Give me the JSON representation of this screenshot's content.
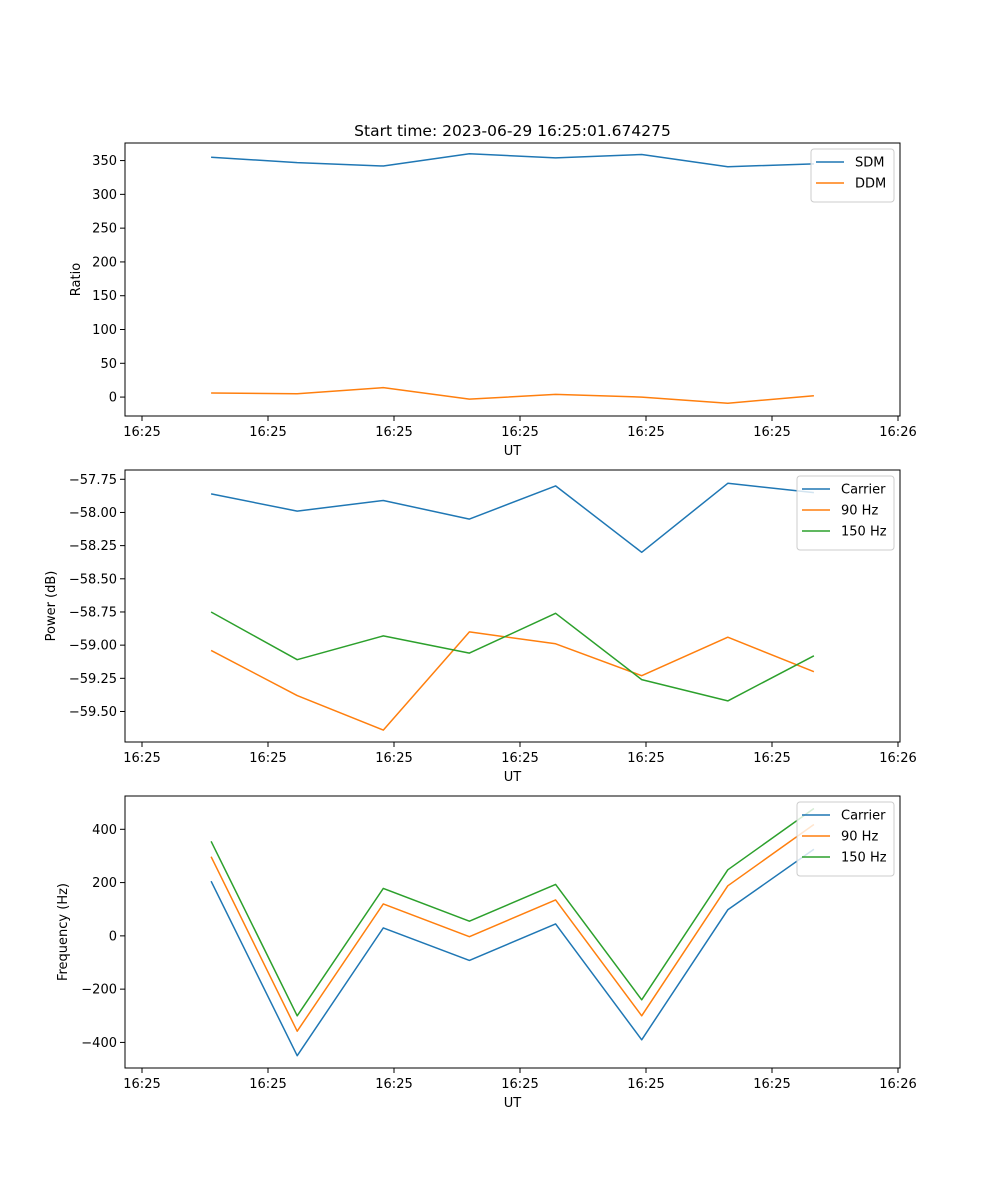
{
  "colors": {
    "blue": "#1f77b4",
    "orange": "#ff7f0e",
    "green": "#2ca02c"
  },
  "chart_data": [
    {
      "type": "line",
      "title": "Start time: 2023-06-29 16:25:01.674275",
      "xlabel": "UT",
      "ylabel": "Ratio",
      "x_ticks": [
        "16:25",
        "16:25",
        "16:25",
        "16:25",
        "16:25",
        "16:25",
        "16:26"
      ],
      "x": [
        1,
        2,
        3,
        4,
        5,
        6,
        7,
        8
      ],
      "xlim": [
        0,
        9
      ],
      "ylim": [
        -28,
        376
      ],
      "y_ticks": [
        0,
        50,
        100,
        150,
        200,
        250,
        300,
        350
      ],
      "y_tick_labels": [
        "0",
        "50",
        "100",
        "150",
        "200",
        "250",
        "300",
        "350"
      ],
      "legend": "upper right",
      "series": [
        {
          "name": "SDM",
          "color": "#1f77b4",
          "values": [
            355,
            347,
            342,
            360,
            354,
            359,
            341,
            345
          ]
        },
        {
          "name": "DDM",
          "color": "#ff7f0e",
          "values": [
            6,
            5,
            14,
            -3,
            4,
            0,
            -9,
            2
          ]
        }
      ]
    },
    {
      "type": "line",
      "xlabel": "UT",
      "ylabel": "Power (dB)",
      "x_ticks": [
        "16:25",
        "16:25",
        "16:25",
        "16:25",
        "16:25",
        "16:25",
        "16:26"
      ],
      "x": [
        1,
        2,
        3,
        4,
        5,
        6,
        7,
        8
      ],
      "xlim": [
        0,
        9
      ],
      "ylim": [
        -59.73,
        -57.68
      ],
      "y_ticks": [
        -57.75,
        -58.0,
        -58.25,
        -58.5,
        -58.75,
        -59.0,
        -59.25,
        -59.5
      ],
      "y_tick_labels": [
        "−57.75",
        "−58.00",
        "−58.25",
        "−58.50",
        "−58.75",
        "−59.00",
        "−59.25",
        "−59.50"
      ],
      "legend": "upper right",
      "series": [
        {
          "name": "Carrier",
          "color": "#1f77b4",
          "values": [
            -57.86,
            -57.99,
            -57.91,
            -58.05,
            -57.8,
            -58.3,
            -57.78,
            -57.85
          ]
        },
        {
          "name": "90 Hz",
          "color": "#ff7f0e",
          "values": [
            -59.04,
            -59.38,
            -59.64,
            -58.9,
            -58.99,
            -59.23,
            -58.94,
            -59.2
          ]
        },
        {
          "name": "150 Hz",
          "color": "#2ca02c",
          "values": [
            -58.75,
            -59.11,
            -58.93,
            -59.06,
            -58.76,
            -59.26,
            -59.42,
            -59.08
          ]
        }
      ]
    },
    {
      "type": "line",
      "xlabel": "UT",
      "ylabel": "Frequency (Hz)",
      "x_ticks": [
        "16:25",
        "16:25",
        "16:25",
        "16:25",
        "16:25",
        "16:25",
        "16:26"
      ],
      "x": [
        1,
        2,
        3,
        4,
        5,
        6,
        7,
        8
      ],
      "xlim": [
        0,
        9
      ],
      "ylim": [
        -496,
        525
      ],
      "y_ticks": [
        400,
        200,
        0,
        -200,
        -400
      ],
      "y_tick_labels": [
        "400",
        "200",
        "0",
        "−200",
        "−400"
      ],
      "legend": "upper right",
      "series": [
        {
          "name": "Carrier",
          "color": "#1f77b4",
          "values": [
            205,
            -450,
            30,
            -92,
            45,
            -390,
            98,
            325
          ]
        },
        {
          "name": "90 Hz",
          "color": "#ff7f0e",
          "values": [
            297,
            -358,
            120,
            -3,
            135,
            -300,
            188,
            418
          ]
        },
        {
          "name": "150 Hz",
          "color": "#2ca02c",
          "values": [
            355,
            -300,
            178,
            55,
            193,
            -240,
            248,
            478
          ]
        }
      ]
    }
  ]
}
